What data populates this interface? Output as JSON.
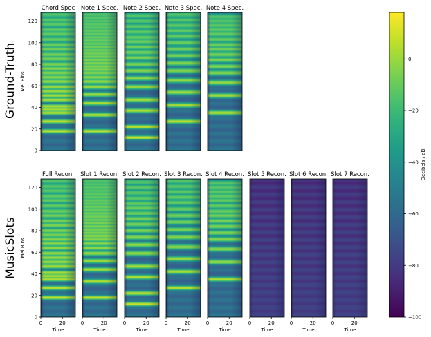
{
  "chart_data": {
    "type": "heatmap",
    "colormap": "viridis",
    "row_labels": [
      "Ground-Truth",
      "MusicSlots"
    ],
    "panels_row1": [
      "Chord Spec",
      "Note 1 Spec.",
      "Note 2 Spec.",
      "Note 3 Spec.",
      "Note 4 Spec."
    ],
    "panels_row2": [
      "Full Recon.",
      "Slot 1 Recon.",
      "Slot 2 Recon.",
      "Slot 3 Recon.",
      "Slot 4 Recon.",
      "Slot 5 Recon.",
      "Slot 6 Recon.",
      "Slot 7 Recon."
    ],
    "ylabel": "Mel Bins",
    "xlabel": "Time",
    "ylim": [
      0,
      128
    ],
    "xlim": [
      0,
      32
    ],
    "yticks": [
      0,
      20,
      40,
      60,
      80,
      100,
      120
    ],
    "xticks": [
      0,
      20
    ],
    "colorbar": {
      "label": "Decibels / dB",
      "range": [
        -100,
        18
      ],
      "ticks": [
        0,
        -20,
        -40,
        -60,
        -80,
        -100
      ]
    },
    "harmonic_bins": {
      "chord": [
        18,
        27,
        35,
        38,
        41,
        47,
        51,
        55,
        59,
        64,
        68,
        72,
        76,
        80,
        85,
        89,
        94,
        98,
        103,
        108,
        112,
        117,
        121,
        126
      ],
      "note1": [
        18,
        33,
        44,
        52,
        59,
        64,
        68,
        72,
        75,
        78,
        81,
        84,
        87,
        90,
        93,
        96,
        99,
        102,
        105,
        108,
        111,
        114,
        117,
        120,
        123,
        126
      ],
      "note2": [
        12,
        22,
        37,
        47,
        59,
        67,
        74,
        80,
        86,
        91,
        96,
        101,
        105,
        110,
        115,
        120,
        125
      ],
      "note3": [
        27,
        42,
        54,
        65,
        74,
        81,
        88,
        94,
        100,
        106,
        111,
        116,
        121,
        126
      ],
      "note4": [
        35,
        51,
        63,
        72,
        78,
        84,
        89,
        94,
        98,
        103,
        108,
        112,
        116,
        120,
        124
      ]
    }
  }
}
